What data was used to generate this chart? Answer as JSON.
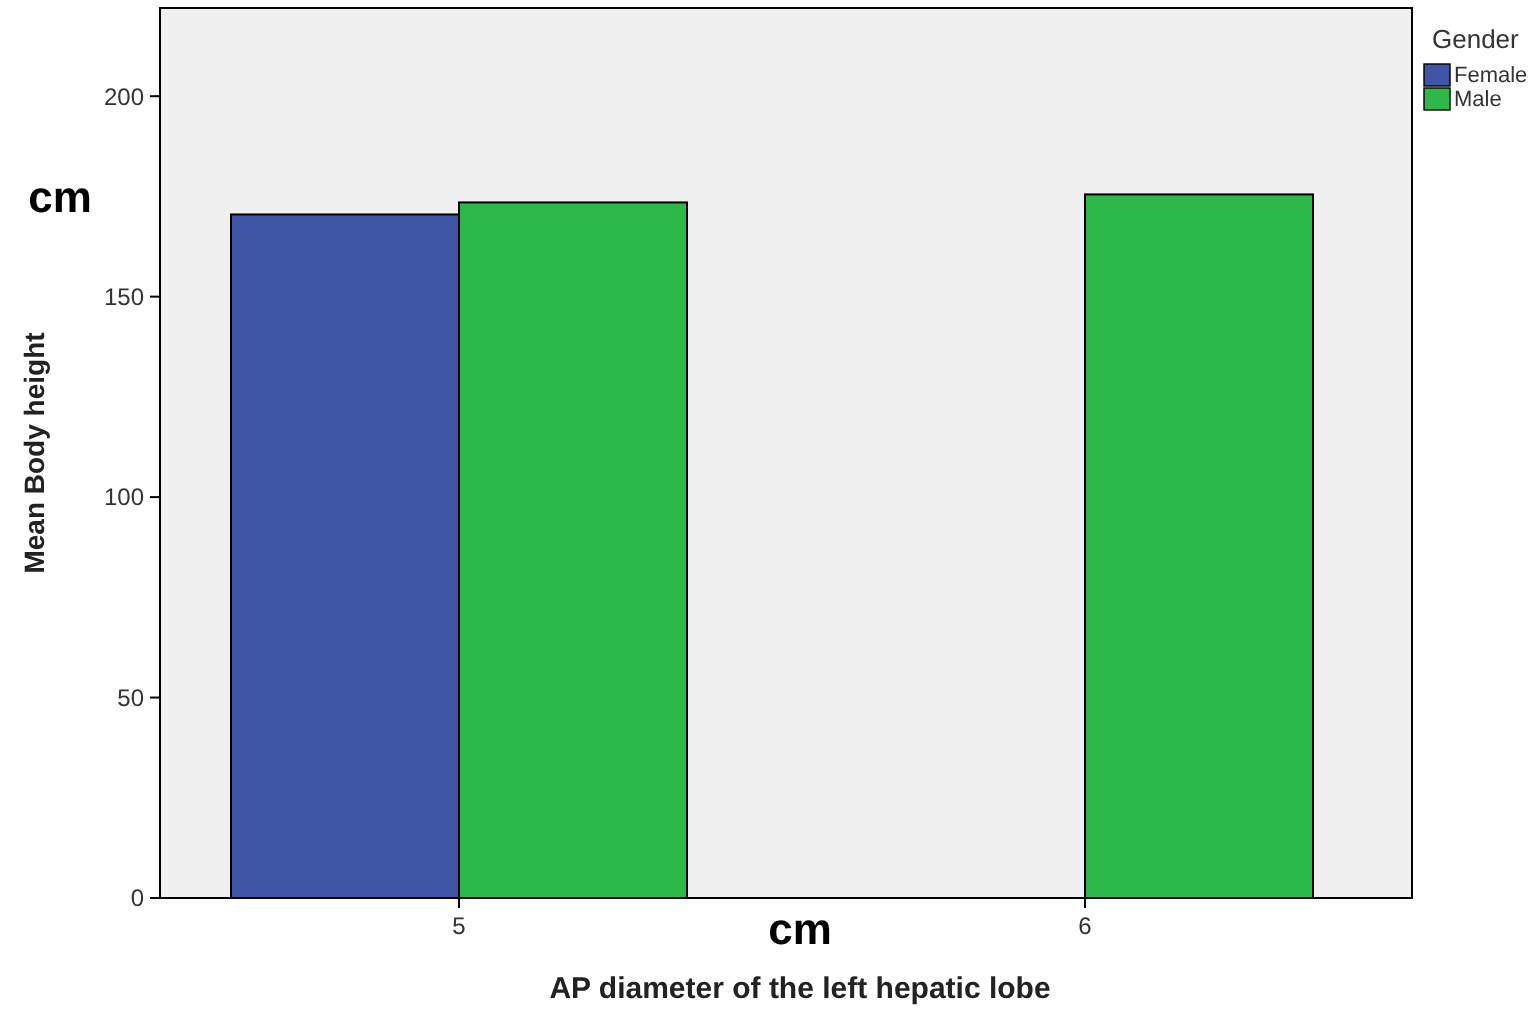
{
  "chart_data": {
    "type": "bar",
    "xlabel": "AP diameter of the left hepatic lobe",
    "ylabel": "Mean Body height",
    "legend_title": "Gender",
    "categories": [
      "5",
      "6"
    ],
    "series": [
      {
        "name": "Female",
        "color": "#3f55a5",
        "values": [
          170.5,
          null
        ]
      },
      {
        "name": "Male",
        "color": "#2db84a",
        "values": [
          173.5,
          175.5
        ]
      }
    ],
    "ylim": [
      0,
      222
    ],
    "yticks": [
      0,
      50,
      100,
      150,
      200
    ],
    "grid": false,
    "legend": "top right",
    "annotations": [
      "cm",
      "cm"
    ]
  }
}
